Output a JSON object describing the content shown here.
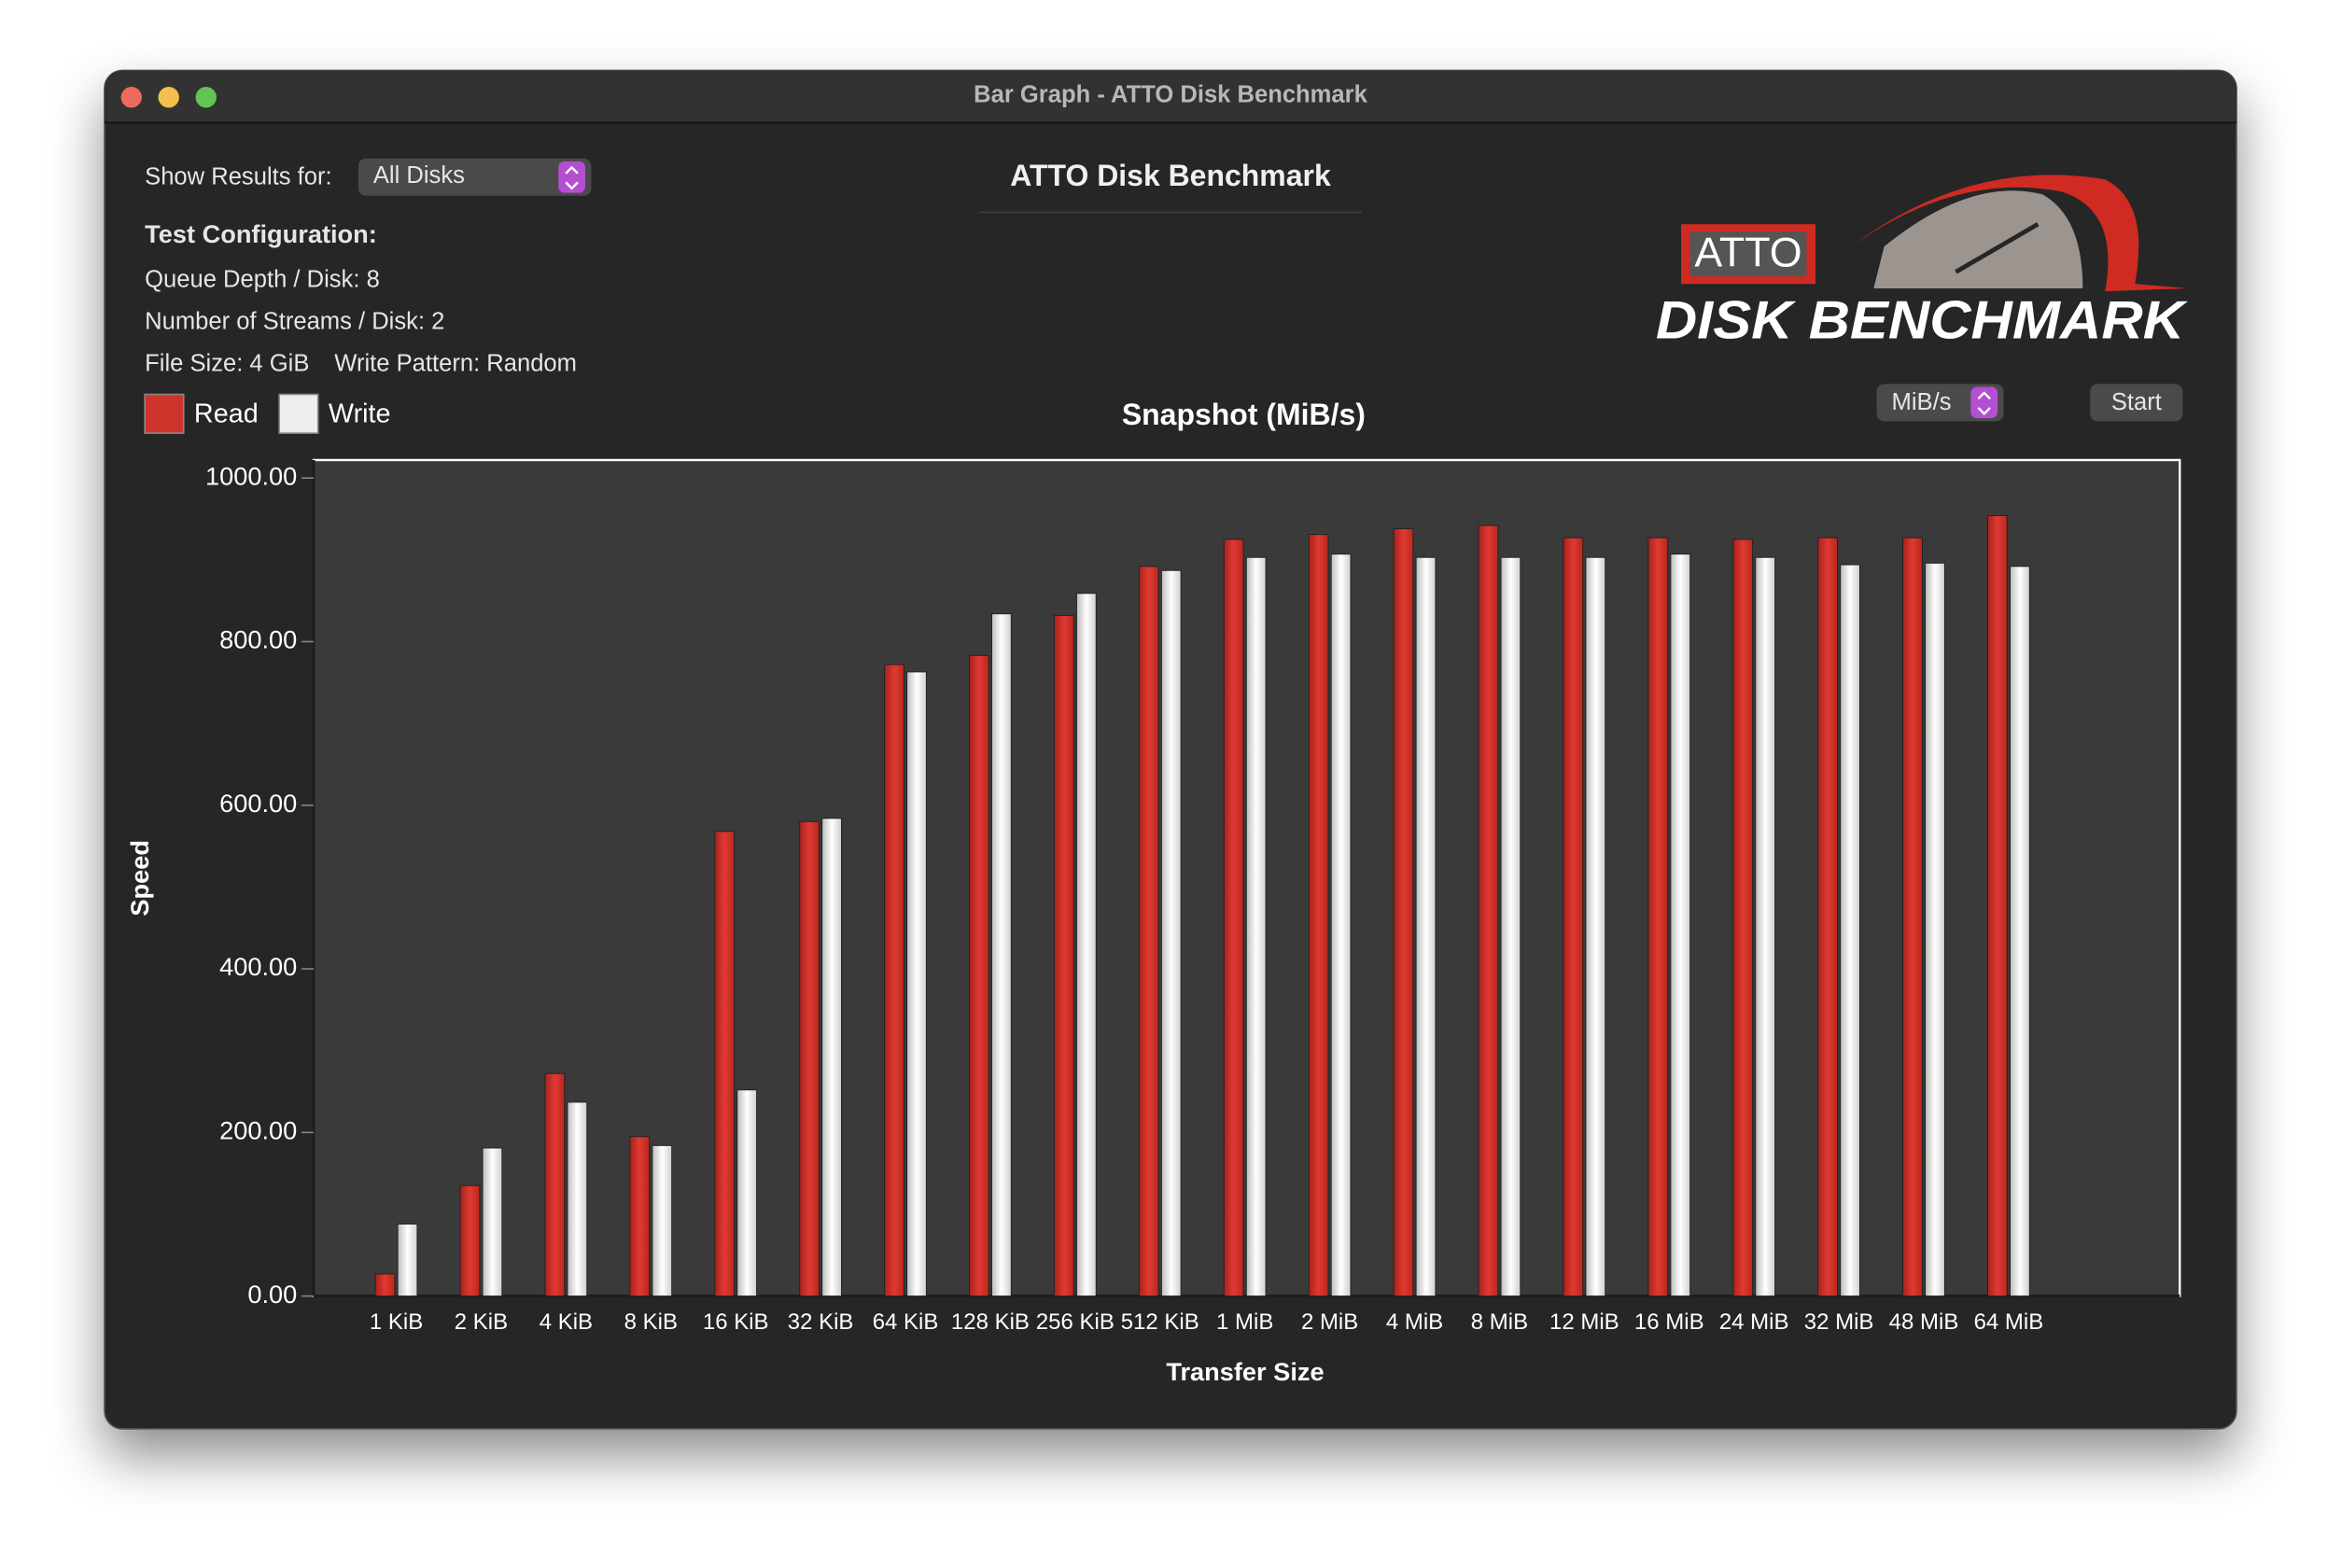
{
  "window": {
    "title": "Bar Graph - ATTO Disk Benchmark"
  },
  "controls": {
    "show_results_label": "Show Results for:",
    "disk_select": "All Disks",
    "unit_select": "MiB/s",
    "start_button": "Start"
  },
  "header": {
    "title": "ATTO Disk Benchmark"
  },
  "config": {
    "heading": "Test Configuration:",
    "queue_depth": "Queue Depth / Disk: 8",
    "streams": "Number of Streams / Disk: 2",
    "file_size": "File Size: 4 GiB",
    "write_pattern": "Write Pattern: Random"
  },
  "logo": {
    "brand": "ATTO",
    "product": "DISK BENCHMARK"
  },
  "chart_data": {
    "type": "bar",
    "title": "Snapshot (MiB/s)",
    "x_label": "Transfer Size",
    "y_label": "Speed",
    "categories": [
      "1 KiB",
      "2 KiB",
      "4 KiB",
      "8 KiB",
      "16 KiB",
      "32 KiB",
      "64 KiB",
      "128 KiB",
      "256 KiB",
      "512 KiB",
      "1 MiB",
      "2 MiB",
      "4 MiB",
      "8 MiB",
      "12 MiB",
      "16 MiB",
      "24 MiB",
      "32 MiB",
      "48 MiB",
      "64 MiB"
    ],
    "series": [
      {
        "name": "Read",
        "color": "#d0332b",
        "values": [
          27,
          135,
          272,
          195,
          568,
          580,
          772,
          783,
          832,
          892,
          925,
          931,
          938,
          942,
          927,
          927,
          925,
          927,
          927,
          954
        ]
      },
      {
        "name": "Write",
        "color": "#eeeeee",
        "values": [
          88,
          181,
          237,
          184,
          252,
          584,
          763,
          834,
          859,
          887,
          903,
          907,
          903,
          903,
          903,
          907,
          903,
          894,
          896,
          892
        ]
      }
    ],
    "ylim": [
      0,
      1022
    ],
    "yticks": [
      {
        "value": 0,
        "label": "0.00"
      },
      {
        "value": 200,
        "label": "200.00"
      },
      {
        "value": 400,
        "label": "400.00"
      },
      {
        "value": 600,
        "label": "600.00"
      },
      {
        "value": 800,
        "label": "800.00"
      },
      {
        "value": 1000,
        "label": "1000.00"
      }
    ],
    "legend": "top-left"
  }
}
